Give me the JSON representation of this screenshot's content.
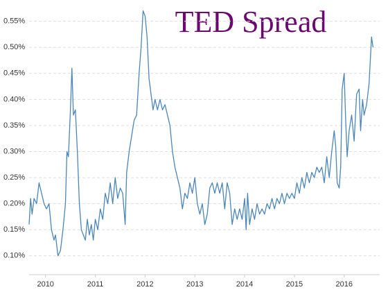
{
  "chart_data": {
    "type": "line",
    "title": "TED Spread",
    "color": "#4a86b8",
    "grid": true,
    "x": [
      2009.67,
      2009.7,
      2009.73,
      2009.77,
      2009.82,
      2009.87,
      2009.92,
      2009.97,
      2010.02,
      2010.07,
      2010.12,
      2010.17,
      2010.2,
      2010.25,
      2010.3,
      2010.35,
      2010.4,
      2010.43,
      2010.46,
      2010.5,
      2010.53,
      2010.56,
      2010.6,
      2010.64,
      2010.68,
      2010.72,
      2010.76,
      2010.8,
      2010.84,
      2010.88,
      2010.92,
      2010.96,
      2011.0,
      2011.05,
      2011.1,
      2011.15,
      2011.2,
      2011.25,
      2011.3,
      2011.35,
      2011.4,
      2011.45,
      2011.5,
      2011.55,
      2011.6,
      2011.63,
      2011.68,
      2011.73,
      2011.78,
      2011.83,
      2011.88,
      2011.92,
      2011.96,
      2012.0,
      2012.04,
      2012.08,
      2012.12,
      2012.16,
      2012.2,
      2012.25,
      2012.3,
      2012.35,
      2012.4,
      2012.45,
      2012.5,
      2012.55,
      2012.6,
      2012.65,
      2012.7,
      2012.75,
      2012.8,
      2012.85,
      2012.9,
      2012.95,
      2013.0,
      2013.05,
      2013.1,
      2013.15,
      2013.2,
      2013.25,
      2013.3,
      2013.35,
      2013.4,
      2013.45,
      2013.5,
      2013.55,
      2013.6,
      2013.65,
      2013.7,
      2013.75,
      2013.8,
      2013.85,
      2013.9,
      2013.95,
      2014.0,
      2014.03,
      2014.06,
      2014.1,
      2014.15,
      2014.2,
      2014.25,
      2014.3,
      2014.35,
      2014.4,
      2014.45,
      2014.5,
      2014.55,
      2014.6,
      2014.65,
      2014.7,
      2014.75,
      2014.8,
      2014.85,
      2014.9,
      2014.95,
      2015.0,
      2015.05,
      2015.1,
      2015.15,
      2015.2,
      2015.25,
      2015.3,
      2015.35,
      2015.4,
      2015.45,
      2015.5,
      2015.55,
      2015.6,
      2015.65,
      2015.7,
      2015.75,
      2015.8,
      2015.83,
      2015.86,
      2015.9,
      2015.93,
      2015.96,
      2016.0,
      2016.03,
      2016.06,
      2016.1,
      2016.15,
      2016.2,
      2016.25,
      2016.3,
      2016.33,
      2016.37,
      2016.4,
      2016.45,
      2016.5,
      2016.55,
      2016.58
    ],
    "values": [
      0.16,
      0.21,
      0.18,
      0.21,
      0.2,
      0.24,
      0.22,
      0.2,
      0.19,
      0.2,
      0.15,
      0.13,
      0.14,
      0.1,
      0.11,
      0.15,
      0.2,
      0.3,
      0.29,
      0.38,
      0.46,
      0.37,
      0.38,
      0.3,
      0.2,
      0.15,
      0.14,
      0.13,
      0.17,
      0.14,
      0.16,
      0.13,
      0.17,
      0.15,
      0.19,
      0.17,
      0.22,
      0.2,
      0.24,
      0.2,
      0.25,
      0.21,
      0.23,
      0.22,
      0.16,
      0.26,
      0.3,
      0.33,
      0.36,
      0.37,
      0.45,
      0.5,
      0.57,
      0.56,
      0.52,
      0.44,
      0.41,
      0.38,
      0.4,
      0.38,
      0.4,
      0.38,
      0.39,
      0.37,
      0.35,
      0.3,
      0.27,
      0.25,
      0.23,
      0.19,
      0.22,
      0.21,
      0.24,
      0.22,
      0.25,
      0.2,
      0.18,
      0.2,
      0.16,
      0.18,
      0.23,
      0.24,
      0.22,
      0.24,
      0.22,
      0.24,
      0.19,
      0.24,
      0.22,
      0.16,
      0.19,
      0.17,
      0.19,
      0.17,
      0.21,
      0.15,
      0.22,
      0.16,
      0.19,
      0.17,
      0.2,
      0.18,
      0.19,
      0.18,
      0.2,
      0.19,
      0.21,
      0.19,
      0.21,
      0.2,
      0.22,
      0.2,
      0.22,
      0.21,
      0.22,
      0.21,
      0.24,
      0.22,
      0.25,
      0.23,
      0.26,
      0.24,
      0.26,
      0.25,
      0.27,
      0.26,
      0.27,
      0.24,
      0.29,
      0.25,
      0.3,
      0.34,
      0.31,
      0.24,
      0.23,
      0.27,
      0.42,
      0.45,
      0.36,
      0.29,
      0.34,
      0.37,
      0.32,
      0.41,
      0.42,
      0.34,
      0.4,
      0.37,
      0.39,
      0.43,
      0.52,
      0.5
    ],
    "xlim": [
      2009.67,
      2016.63
    ],
    "xticks": [
      2010,
      2011,
      2012,
      2013,
      2014,
      2015,
      2016
    ],
    "ylim": [
      0.0864,
      0.5682
    ],
    "yticks": [
      {
        "value": 0.1,
        "label": "0.10%"
      },
      {
        "value": 0.15,
        "label": "0.15%"
      },
      {
        "value": 0.2,
        "label": "0.20%"
      },
      {
        "value": 0.25,
        "label": "0.25%"
      },
      {
        "value": 0.3,
        "label": "0.30%"
      },
      {
        "value": 0.35,
        "label": "0.35%"
      },
      {
        "value": 0.4,
        "label": "0.40%"
      },
      {
        "value": 0.45,
        "label": "0.45%"
      },
      {
        "value": 0.5,
        "label": "0.50%"
      },
      {
        "value": 0.55,
        "label": "0.55%"
      }
    ]
  }
}
